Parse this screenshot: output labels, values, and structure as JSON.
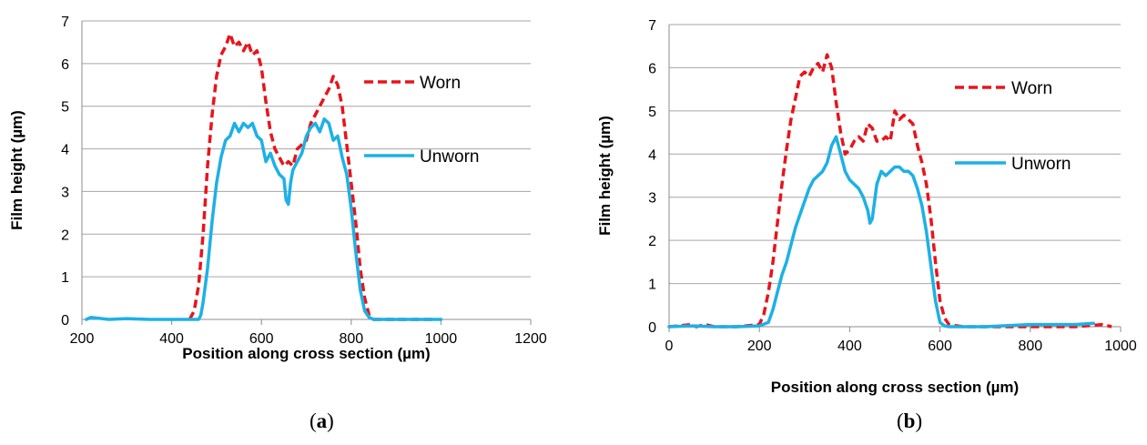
{
  "colors": {
    "worn": "#e8141b",
    "unworn": "#1eb0e6",
    "grid": "#a6a6a6"
  },
  "chart_data": [
    {
      "type": "line",
      "panel_label_open": "(",
      "panel_label_letter": "a",
      "panel_label_close": ")",
      "xlabel": "Position along cross section (µm)",
      "ylabel": "Film height (µm)",
      "xlim": [
        200,
        1200
      ],
      "ylim": [
        0,
        7
      ],
      "xticks": [
        200,
        400,
        600,
        800,
        1000,
        1200
      ],
      "yticks": [
        0,
        1,
        2,
        3,
        4,
        5,
        6,
        7
      ],
      "grid": true,
      "legend_placement": "right",
      "series": [
        {
          "name": "Worn",
          "style": "dashed",
          "color": "#e8141b",
          "x": [
            440,
            450,
            460,
            470,
            480,
            490,
            500,
            510,
            520,
            530,
            540,
            550,
            560,
            570,
            580,
            590,
            600,
            610,
            620,
            630,
            640,
            650,
            660,
            670,
            680,
            690,
            700,
            710,
            720,
            730,
            740,
            750,
            760,
            770,
            780,
            790,
            800,
            810,
            820,
            830,
            840,
            850,
            860,
            880,
            920,
            960,
            990
          ],
          "y": [
            0,
            0.2,
            0.8,
            2.0,
            3.6,
            4.8,
            5.7,
            6.2,
            6.4,
            6.7,
            6.4,
            6.5,
            6.3,
            6.5,
            6.2,
            6.3,
            5.9,
            5.1,
            4.4,
            4.0,
            3.8,
            3.6,
            3.7,
            3.6,
            4.0,
            4.1,
            4.2,
            4.6,
            4.8,
            5.0,
            5.2,
            5.4,
            5.7,
            5.5,
            5.0,
            4.1,
            3.2,
            2.3,
            1.2,
            0.5,
            0.1,
            0,
            0,
            0,
            0,
            0,
            0
          ]
        },
        {
          "name": "Unworn",
          "style": "solid",
          "color": "#1eb0e6",
          "x": [
            210,
            220,
            260,
            300,
            350,
            400,
            440,
            460,
            465,
            470,
            480,
            490,
            500,
            510,
            520,
            530,
            540,
            550,
            560,
            570,
            580,
            590,
            600,
            610,
            620,
            630,
            640,
            650,
            655,
            660,
            665,
            670,
            680,
            690,
            700,
            710,
            720,
            730,
            740,
            750,
            760,
            770,
            780,
            790,
            800,
            810,
            820,
            830,
            840,
            850,
            900,
            960,
            1000
          ],
          "y": [
            0,
            0.05,
            0,
            0.02,
            0,
            0,
            0,
            0,
            0.1,
            0.4,
            1.2,
            2.3,
            3.2,
            3.8,
            4.2,
            4.3,
            4.6,
            4.4,
            4.6,
            4.5,
            4.6,
            4.3,
            4.2,
            3.7,
            3.9,
            3.6,
            3.4,
            3.3,
            2.8,
            2.7,
            3.2,
            3.5,
            3.7,
            3.9,
            4.3,
            4.5,
            4.6,
            4.4,
            4.7,
            4.6,
            4.2,
            4.3,
            3.8,
            3.4,
            2.6,
            1.6,
            0.7,
            0.2,
            0.05,
            0,
            0,
            0,
            0
          ]
        }
      ]
    },
    {
      "type": "line",
      "panel_label_open": "(",
      "panel_label_letter": "b",
      "panel_label_close": ")",
      "xlabel": "Position along cross section (µm)",
      "ylabel": "Film height (µm)",
      "xlim": [
        0,
        1000
      ],
      "ylim": [
        0,
        7
      ],
      "xticks": [
        0,
        200,
        400,
        600,
        800,
        1000
      ],
      "yticks": [
        0,
        1,
        2,
        3,
        4,
        5,
        6,
        7
      ],
      "grid": true,
      "legend_placement": "right",
      "series": [
        {
          "name": "Worn",
          "style": "dashed",
          "color": "#e8141b",
          "x": [
            0,
            20,
            50,
            60,
            80,
            100,
            150,
            200,
            210,
            220,
            230,
            240,
            250,
            260,
            270,
            280,
            290,
            300,
            310,
            320,
            330,
            340,
            350,
            360,
            370,
            380,
            390,
            400,
            410,
            420,
            430,
            440,
            450,
            460,
            470,
            480,
            490,
            500,
            510,
            520,
            530,
            540,
            550,
            560,
            570,
            580,
            590,
            600,
            610,
            620,
            650,
            700,
            800,
            900,
            960,
            980
          ],
          "y": [
            0,
            0.02,
            0.05,
            0,
            0.05,
            0,
            0,
            0.05,
            0.3,
            0.8,
            1.5,
            2.4,
            3.3,
            4.1,
            4.8,
            5.3,
            5.8,
            5.9,
            5.8,
            6.0,
            6.1,
            5.9,
            6.3,
            6.0,
            5.2,
            4.5,
            4.0,
            4.1,
            4.3,
            4.4,
            4.3,
            4.7,
            4.6,
            4.3,
            4.3,
            4.4,
            4.3,
            5.0,
            4.8,
            4.9,
            4.8,
            4.7,
            4.2,
            3.8,
            3.3,
            2.5,
            1.5,
            0.6,
            0.2,
            0.05,
            0,
            0,
            0,
            0,
            0.05,
            0
          ]
        },
        {
          "name": "Unworn",
          "style": "solid",
          "color": "#1eb0e6",
          "x": [
            0,
            50,
            100,
            150,
            200,
            220,
            230,
            240,
            250,
            260,
            270,
            280,
            290,
            300,
            310,
            320,
            330,
            340,
            350,
            360,
            370,
            380,
            390,
            400,
            410,
            420,
            430,
            440,
            445,
            450,
            455,
            460,
            470,
            480,
            490,
            500,
            510,
            520,
            530,
            540,
            550,
            560,
            570,
            580,
            590,
            600,
            610,
            620,
            650,
            700,
            800,
            900,
            940
          ],
          "y": [
            0,
            0.02,
            0,
            0,
            0.02,
            0.1,
            0.4,
            0.8,
            1.2,
            1.5,
            1.9,
            2.3,
            2.6,
            2.9,
            3.2,
            3.4,
            3.5,
            3.6,
            3.8,
            4.2,
            4.4,
            4.0,
            3.6,
            3.4,
            3.3,
            3.2,
            3.0,
            2.7,
            2.4,
            2.5,
            2.9,
            3.3,
            3.6,
            3.5,
            3.6,
            3.7,
            3.7,
            3.6,
            3.6,
            3.5,
            3.2,
            2.8,
            2.2,
            1.4,
            0.6,
            0.1,
            0.02,
            0,
            0,
            0,
            0.05,
            0.05,
            0.08
          ]
        }
      ]
    }
  ]
}
